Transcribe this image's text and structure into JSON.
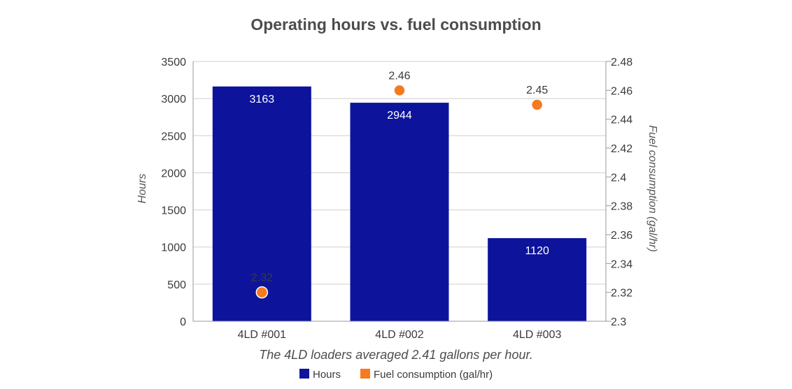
{
  "chart_data": {
    "type": "bar",
    "title": "Operating hours vs. fuel consumption",
    "categories": [
      "4LD #001",
      "4LD #002",
      "4LD #003"
    ],
    "series": [
      {
        "name": "Hours",
        "kind": "bar",
        "axis": "left",
        "color": "#0d149b",
        "values": [
          3163,
          2944,
          1120
        ],
        "labels": [
          "3163",
          "2944",
          "1120"
        ]
      },
      {
        "name": "Fuel consumption (gal/hr)",
        "kind": "scatter",
        "axis": "right",
        "color": "#f47b20",
        "values": [
          2.32,
          2.46,
          2.45
        ],
        "labels": [
          "2.32",
          "2.46",
          "2.45"
        ]
      }
    ],
    "y_left": {
      "label": "Hours",
      "ylim": [
        0,
        3500
      ],
      "ticks": [
        "0",
        "500",
        "1000",
        "1500",
        "2000",
        "2500",
        "3000",
        "3500"
      ]
    },
    "y_right": {
      "label": "Fuel consumption (gal/hr)",
      "ylim": [
        2.3,
        2.48
      ],
      "ticks": [
        "2.3",
        "2.32",
        "2.34",
        "2.36",
        "2.38",
        "2.4",
        "2.42",
        "2.44",
        "2.46",
        "2.48"
      ]
    },
    "grid": true,
    "caption": "The 4LD loaders averaged 2.41 gallons per hour.",
    "legend_position": "bottom-center"
  }
}
